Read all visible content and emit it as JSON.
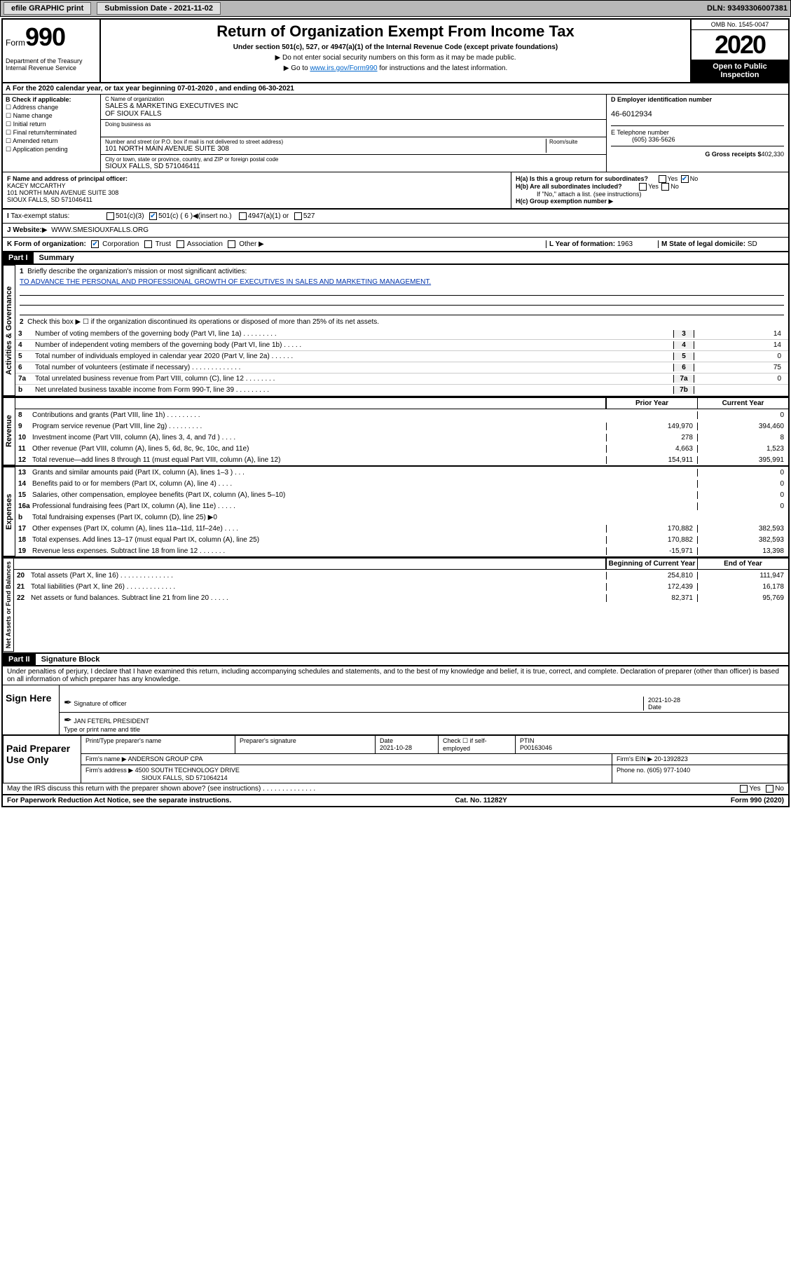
{
  "topbar": {
    "efile": "efile GRAPHIC print",
    "submission_label": "Submission Date - 2021-11-02",
    "dln": "DLN: 93493306007381"
  },
  "header": {
    "form_label": "Form",
    "form_number": "990",
    "dept": "Department of the Treasury\nInternal Revenue Service",
    "title": "Return of Organization Exempt From Income Tax",
    "sub": "Under section 501(c), 527, or 4947(a)(1) of the Internal Revenue Code (except private foundations)",
    "note1": "Do not enter social security numbers on this form as it may be made public.",
    "note2_pre": "Go to ",
    "note2_link": "www.irs.gov/Form990",
    "note2_post": " for instructions and the latest information.",
    "omb": "OMB No. 1545-0047",
    "year": "2020",
    "open": "Open to Public Inspection"
  },
  "period": {
    "text": "For the 2020 calendar year, or tax year beginning 07-01-2020   , and ending 06-30-2021"
  },
  "section_b": {
    "header": "B Check if applicable:",
    "checks": [
      "Address change",
      "Name change",
      "Initial return",
      "Final return/terminated",
      "Amended return",
      "Application pending"
    ],
    "c_label": "C Name of organization",
    "org_name": "SALES & MARKETING EXECUTIVES INC\nOF SIOUX FALLS",
    "dba_label": "Doing business as",
    "addr_label": "Number and street (or P.O. box if mail is not delivered to street address)",
    "room_label": "Room/suite",
    "addr": "101 NORTH MAIN AVENUE SUITE 308",
    "city_label": "City or town, state or province, country, and ZIP or foreign postal code",
    "city": "SIOUX FALLS, SD  571046411",
    "d_label": "D Employer identification number",
    "ein": "46-6012934",
    "e_label": "E Telephone number",
    "phone": "(605) 336-5626",
    "g_label": "G Gross receipts $",
    "gross": "402,330"
  },
  "section_f": {
    "f_label": "F  Name and address of principal officer:",
    "officer": "KACEY MCCARTHY\n101 NORTH MAIN AVENUE SUITE 308\nSIOUX FALLS, SD  571046411",
    "ha": "H(a)  Is this a group return for subordinates?",
    "hb": "H(b)  Are all subordinates included?",
    "hb_note": "If \"No,\" attach a list. (see instructions)",
    "hc": "H(c)  Group exemption number",
    "yes": "Yes",
    "no": "No"
  },
  "section_i": {
    "label": "Tax-exempt status:",
    "opts": [
      "501(c)(3)",
      "501(c) ( 6 )",
      "(insert no.)",
      "4947(a)(1) or",
      "527"
    ]
  },
  "section_j": {
    "label": "J  Website:",
    "url": "WWW.SMESIOUXFALLS.ORG"
  },
  "section_k": {
    "label": "K Form of organization:",
    "opts": [
      "Corporation",
      "Trust",
      "Association",
      "Other"
    ],
    "l_label": "L Year of formation:",
    "l_val": "1963",
    "m_label": "M State of legal domicile:",
    "m_val": "SD"
  },
  "part1": {
    "hdr": "Part I",
    "title": "Summary",
    "line1": "Briefly describe the organization's mission or most significant activities:",
    "mission": "TO ADVANCE THE PERSONAL AND PROFESSIONAL GROWTH OF EXECUTIVES IN SALES AND MARKETING MANAGEMENT.",
    "line2": "Check this box ▶ ☐  if the organization discontinued its operations or disposed of more than 25% of its net assets.",
    "lines_gov": [
      {
        "n": "3",
        "t": "Number of voting members of the governing body (Part VI, line 1a)  .  .  .  .  .  .  .  .  .",
        "b": "3",
        "v": "14"
      },
      {
        "n": "4",
        "t": "Number of independent voting members of the governing body (Part VI, line 1b)  .  .  .  .  .",
        "b": "4",
        "v": "14"
      },
      {
        "n": "5",
        "t": "Total number of individuals employed in calendar year 2020 (Part V, line 2a)  .  .  .  .  .  .",
        "b": "5",
        "v": "0"
      },
      {
        "n": "6",
        "t": "Total number of volunteers (estimate if necessary)  .  .  .  .  .  .  .  .  .  .  .  .  .",
        "b": "6",
        "v": "75"
      },
      {
        "n": "7a",
        "t": "Total unrelated business revenue from Part VIII, column (C), line 12  .  .  .  .  .  .  .  .",
        "b": "7a",
        "v": "0"
      },
      {
        "n": "b",
        "t": "Net unrelated business taxable income from Form 990-T, line 39  .  .  .  .  .  .  .  .  .",
        "b": "7b",
        "v": ""
      }
    ],
    "prior_year": "Prior Year",
    "current_year": "Current Year",
    "rev_lines": [
      {
        "n": "8",
        "t": "Contributions and grants (Part VIII, line 1h)  .  .  .  .  .  .  .  .  .",
        "p": "",
        "c": "0"
      },
      {
        "n": "9",
        "t": "Program service revenue (Part VIII, line 2g)  .  .  .  .  .  .  .  .  .",
        "p": "149,970",
        "c": "394,460"
      },
      {
        "n": "10",
        "t": "Investment income (Part VIII, column (A), lines 3, 4, and 7d )  .  .  .  .",
        "p": "278",
        "c": "8"
      },
      {
        "n": "11",
        "t": "Other revenue (Part VIII, column (A), lines 5, 6d, 8c, 9c, 10c, and 11e)",
        "p": "4,663",
        "c": "1,523"
      },
      {
        "n": "12",
        "t": "Total revenue—add lines 8 through 11 (must equal Part VIII, column (A), line 12)",
        "p": "154,911",
        "c": "395,991"
      }
    ],
    "exp_lines": [
      {
        "n": "13",
        "t": "Grants and similar amounts paid (Part IX, column (A), lines 1–3 )  .  .  .",
        "p": "",
        "c": "0"
      },
      {
        "n": "14",
        "t": "Benefits paid to or for members (Part IX, column (A), line 4)  .  .  .  .",
        "p": "",
        "c": "0"
      },
      {
        "n": "15",
        "t": "Salaries, other compensation, employee benefits (Part IX, column (A), lines 5–10)",
        "p": "",
        "c": "0"
      },
      {
        "n": "16a",
        "t": "Professional fundraising fees (Part IX, column (A), line 11e)  .  .  .  .  .",
        "p": "",
        "c": "0"
      },
      {
        "n": "b",
        "t": "Total fundraising expenses (Part IX, column (D), line 25) ▶0",
        "p": "",
        "c": "",
        "gray": true
      },
      {
        "n": "17",
        "t": "Other expenses (Part IX, column (A), lines 11a–11d, 11f–24e)  .  .  .  .",
        "p": "170,882",
        "c": "382,593"
      },
      {
        "n": "18",
        "t": "Total expenses. Add lines 13–17 (must equal Part IX, column (A), line 25)",
        "p": "170,882",
        "c": "382,593"
      },
      {
        "n": "19",
        "t": "Revenue less expenses. Subtract line 18 from line 12  .  .  .  .  .  .  .",
        "p": "-15,971",
        "c": "13,398"
      }
    ],
    "beg_year": "Beginning of Current Year",
    "end_year": "End of Year",
    "net_lines": [
      {
        "n": "20",
        "t": "Total assets (Part X, line 16)  .  .  .  .  .  .  .  .  .  .  .  .  .  .",
        "p": "254,810",
        "c": "111,947"
      },
      {
        "n": "21",
        "t": "Total liabilities (Part X, line 26)  .  .  .  .  .  .  .  .  .  .  .  .  .",
        "p": "172,439",
        "c": "16,178"
      },
      {
        "n": "22",
        "t": "Net assets or fund balances. Subtract line 21 from line 20  .  .  .  .  .",
        "p": "82,371",
        "c": "95,769"
      }
    ]
  },
  "vtabs": {
    "gov": "Activities & Governance",
    "rev": "Revenue",
    "exp": "Expenses",
    "net": "Net Assets or Fund Balances"
  },
  "part2": {
    "hdr": "Part II",
    "title": "Signature Block",
    "penalty": "Under penalties of perjury, I declare that I have examined this return, including accompanying schedules and statements, and to the best of my knowledge and belief, it is true, correct, and complete. Declaration of preparer (other than officer) is based on all information of which preparer has any knowledge."
  },
  "sign": {
    "label": "Sign Here",
    "sig_officer": "Signature of officer",
    "date": "2021-10-28",
    "date_label": "Date",
    "name": "JAN FETERL PRESIDENT",
    "name_label": "Type or print name and title"
  },
  "preparer": {
    "label": "Paid Preparer Use Only",
    "print_label": "Print/Type preparer's name",
    "sig_label": "Preparer's signature",
    "date_label": "Date",
    "date": "2021-10-28",
    "check_label": "Check ☐  if self-employed",
    "ptin_label": "PTIN",
    "ptin": "P00163046",
    "firm_label": "Firm's name   ▶",
    "firm": "ANDERSON GROUP CPA",
    "ein_label": "Firm's EIN ▶",
    "ein": "20-1392823",
    "addr_label": "Firm's address ▶",
    "addr": "4500 SOUTH TECHNOLOGY DRIVE",
    "addr2": "SIOUX FALLS, SD  571064214",
    "phone_label": "Phone no.",
    "phone": "(605) 977-1040"
  },
  "discuss": {
    "text": "May the IRS discuss this return with the preparer shown above? (see instructions)  .  .  .  .  .  .  .  .  .  .  .  .  .  .",
    "yes": "Yes",
    "no": "No"
  },
  "footer": {
    "left": "For Paperwork Reduction Act Notice, see the separate instructions.",
    "mid": "Cat. No. 11282Y",
    "right": "Form 990 (2020)"
  }
}
